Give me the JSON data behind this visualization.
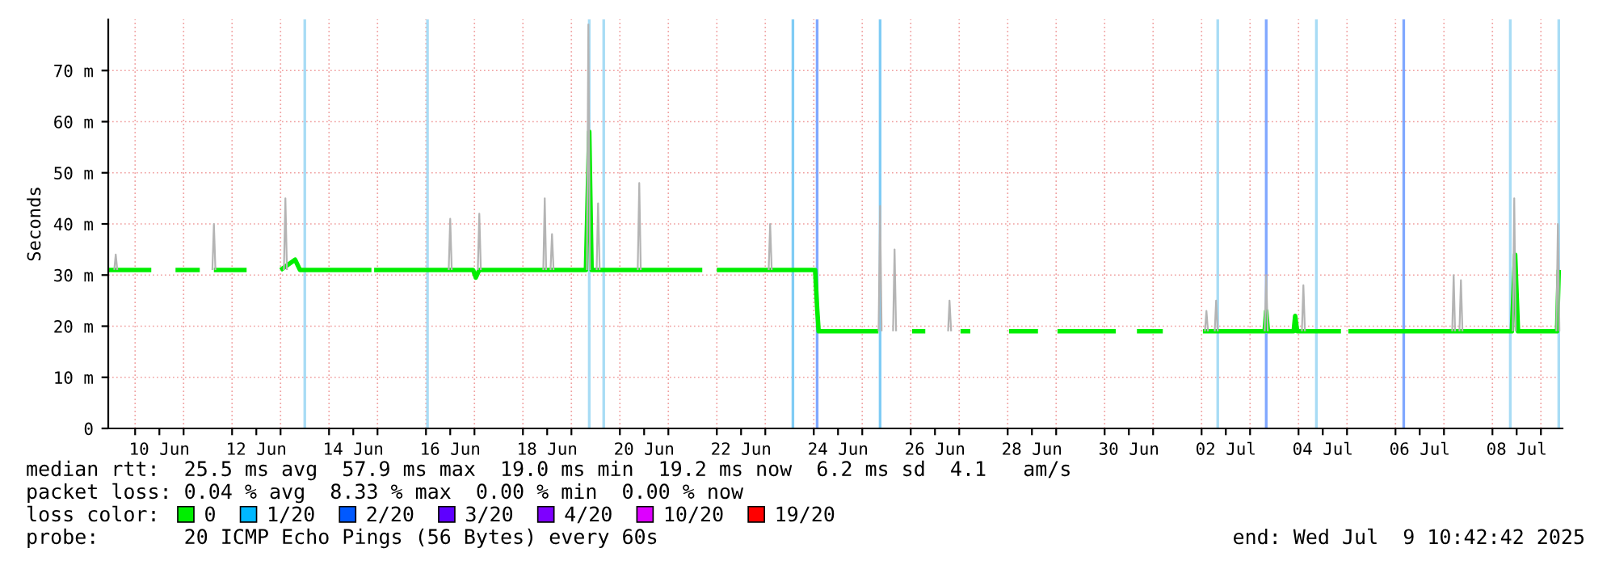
{
  "chart_data": {
    "type": "line",
    "ylabel": "Seconds",
    "xlim": [
      "2025-06-09T10:42",
      "2025-07-09T10:42"
    ],
    "xticks": [
      {
        "value": "2025-06-10T12:00",
        "label": "10 Jun"
      },
      {
        "value": "2025-06-12T12:00",
        "label": "12 Jun"
      },
      {
        "value": "2025-06-14T12:00",
        "label": "14 Jun"
      },
      {
        "value": "2025-06-16T12:00",
        "label": "16 Jun"
      },
      {
        "value": "2025-06-18T12:00",
        "label": "18 Jun"
      },
      {
        "value": "2025-06-20T12:00",
        "label": "20 Jun"
      },
      {
        "value": "2025-06-22T12:00",
        "label": "22 Jun"
      },
      {
        "value": "2025-06-24T12:00",
        "label": "24 Jun"
      },
      {
        "value": "2025-06-26T12:00",
        "label": "26 Jun"
      },
      {
        "value": "2025-06-28T12:00",
        "label": "28 Jun"
      },
      {
        "value": "2025-06-30T12:00",
        "label": "30 Jun"
      },
      {
        "value": "2025-07-02T12:00",
        "label": "02 Jul"
      },
      {
        "value": "2025-07-04T12:00",
        "label": "04 Jul"
      },
      {
        "value": "2025-07-06T12:00",
        "label": "06 Jul"
      },
      {
        "value": "2025-07-08T12:00",
        "label": "08 Jul"
      },
      {
        "value": "2025-06-10T00:00",
        "label": null
      },
      {
        "value": "2025-06-11T00:00",
        "label": null
      },
      {
        "value": "2025-06-12T00:00",
        "label": null
      },
      {
        "value": "2025-06-13T00:00",
        "label": null
      },
      {
        "value": "2025-06-14T00:00",
        "label": null
      },
      {
        "value": "2025-06-15T00:00",
        "label": null
      },
      {
        "value": "2025-06-16T00:00",
        "label": null
      },
      {
        "value": "2025-06-17T00:00",
        "label": null
      },
      {
        "value": "2025-06-18T00:00",
        "label": null
      },
      {
        "value": "2025-06-19T00:00",
        "label": null
      },
      {
        "value": "2025-06-20T00:00",
        "label": null
      },
      {
        "value": "2025-06-21T00:00",
        "label": null
      },
      {
        "value": "2025-06-22T00:00",
        "label": null
      },
      {
        "value": "2025-06-23T00:00",
        "label": null
      },
      {
        "value": "2025-06-24T00:00",
        "label": null
      },
      {
        "value": "2025-06-25T00:00",
        "label": null
      },
      {
        "value": "2025-06-26T00:00",
        "label": null
      },
      {
        "value": "2025-06-27T00:00",
        "label": null
      },
      {
        "value": "2025-06-28T00:00",
        "label": null
      },
      {
        "value": "2025-06-29T00:00",
        "label": null
      },
      {
        "value": "2025-06-30T00:00",
        "label": null
      },
      {
        "value": "2025-07-01T00:00",
        "label": null
      },
      {
        "value": "2025-07-02T00:00",
        "label": null
      },
      {
        "value": "2025-07-03T00:00",
        "label": null
      },
      {
        "value": "2025-07-04T00:00",
        "label": null
      },
      {
        "value": "2025-07-05T00:00",
        "label": null
      },
      {
        "value": "2025-07-06T00:00",
        "label": null
      },
      {
        "value": "2025-07-07T00:00",
        "label": null
      },
      {
        "value": "2025-07-08T00:00",
        "label": null
      },
      {
        "value": "2025-07-09T00:00",
        "label": null
      }
    ],
    "ylim": [
      0,
      80
    ],
    "yticks": [
      0,
      {
        "value": 10,
        "label": "10 m"
      },
      {
        "value": 20,
        "label": "20 m"
      },
      {
        "value": 30,
        "label": "30 m"
      },
      {
        "value": 40,
        "label": "40 m"
      },
      {
        "value": 50,
        "label": "50 m"
      },
      {
        "value": 60,
        "label": "60 m"
      },
      {
        "value": 70,
        "label": "70 m"
      }
    ],
    "grid": true,
    "legend": "bottom",
    "legend_title": "loss color:",
    "line_style": "solid",
    "series": [
      {
        "color": "#b4b4b4",
        "x": [
          "2025-06-09T13:40",
          "2025-06-09T14:24",
          "2025-06-09T15:10",
          null,
          "2025-06-11T14:15",
          "2025-06-11T15:00",
          "2025-06-11T15:45",
          null,
          "2025-06-13T01:40",
          "2025-06-13T02:24",
          "2025-06-13T03:10",
          null,
          "2025-06-16T11:15",
          "2025-06-16T12:00",
          "2025-06-16T12:45",
          null,
          "2025-06-17T01:40",
          "2025-06-17T02:24",
          "2025-06-17T03:10",
          null,
          "2025-06-18T10:05",
          "2025-06-18T10:48",
          "2025-06-18T11:30",
          null,
          "2025-06-18T13:40",
          "2025-06-18T14:24",
          "2025-06-18T15:10",
          null,
          "2025-06-19T07:40",
          "2025-06-19T08:24",
          "2025-06-19T09:10",
          null,
          "2025-06-19T12:30",
          "2025-06-19T13:12",
          "2025-06-19T14:00",
          null,
          "2025-06-20T08:50",
          "2025-06-20T09:36",
          "2025-06-20T10:20",
          null,
          "2025-06-23T01:40",
          "2025-06-23T02:24",
          "2025-06-23T03:10",
          null,
          "2025-06-25T08:05",
          "2025-06-25T08:50",
          "2025-06-25T09:35",
          null,
          "2025-06-25T15:15",
          "2025-06-25T16:00",
          "2025-06-25T16:45",
          null,
          "2025-06-26T18:30",
          "2025-06-26T19:12",
          "2025-06-26T20:00",
          null,
          "2025-07-02T01:40",
          "2025-07-02T02:24",
          "2025-07-02T03:10",
          null,
          "2025-07-02T06:30",
          "2025-07-02T07:12",
          "2025-07-02T08:00",
          null,
          "2025-07-03T07:15",
          "2025-07-03T08:00",
          "2025-07-03T08:45",
          null,
          "2025-07-04T01:40",
          "2025-07-04T02:24",
          "2025-07-04T03:10",
          null,
          "2025-07-07T04:05",
          "2025-07-07T04:48",
          "2025-07-07T05:30",
          null,
          "2025-07-07T07:40",
          "2025-07-07T08:24",
          "2025-07-07T09:10",
          null,
          "2025-07-08T10:05",
          "2025-07-08T10:48",
          "2025-07-08T11:30",
          null,
          "2025-07-09T07:40",
          "2025-07-09T08:24",
          "2025-07-09T09:10"
        ],
        "values": [
          31,
          34,
          31,
          null,
          31,
          40,
          31,
          null,
          31,
          45,
          31,
          null,
          31,
          41,
          31,
          null,
          31,
          42,
          31,
          null,
          31,
          45,
          31,
          null,
          31,
          38,
          31,
          null,
          31,
          79,
          31,
          null,
          31,
          44,
          31,
          null,
          31,
          48,
          31,
          null,
          31,
          40,
          31,
          null,
          19,
          43.5,
          19,
          null,
          19,
          35,
          19,
          null,
          19,
          25,
          19,
          null,
          19,
          23,
          19,
          null,
          19,
          25,
          19,
          null,
          19,
          30,
          19,
          null,
          19,
          28,
          19,
          null,
          19,
          30,
          19,
          null,
          19,
          29,
          19,
          null,
          19,
          45,
          19,
          null,
          19,
          40,
          19
        ]
      },
      {
        "name": "0",
        "color": "#00ee00",
        "x": [
          "2025-06-09T10:48",
          "2025-06-10T08:00",
          "2025-06-10T12:00",
          "2025-06-10T20:00",
          "2025-06-11T08:00",
          "2025-06-11T12:00",
          "2025-06-11T15:00",
          "2025-06-12T07:12",
          "2025-06-12T12:00",
          "2025-06-13T00:00",
          "2025-06-13T07:12",
          "2025-06-13T09:36",
          "2025-06-14T21:00",
          "2025-06-14T21:36",
          "2025-06-14T22:20",
          "2025-06-16T23:20",
          "2025-06-17T00:40",
          "2025-06-17T02:24",
          "2025-06-19T07:12",
          "2025-06-19T08:50",
          "2025-06-19T10:00",
          "2025-06-21T16:48",
          "2025-06-21T21:36",
          "2025-06-22T00:00",
          "2025-06-24T00:40",
          "2025-06-24T01:40",
          "2025-06-24T02:24",
          "2025-06-25T08:00",
          "2025-06-25T10:48",
          "2025-06-26T00:40",
          "2025-06-26T07:12",
          "2025-06-26T12:00",
          "2025-06-27T00:40",
          "2025-06-27T05:30",
          "2025-06-27T12:00",
          "2025-06-28T00:40",
          "2025-06-28T15:00",
          "2025-06-28T19:12",
          "2025-06-29T00:40",
          "2025-06-30T05:30",
          "2025-06-30T09:36",
          "2025-06-30T16:00",
          "2025-07-01T04:48",
          "2025-07-01T12:00",
          "2025-07-02T00:40",
          "2025-07-03T07:12",
          "2025-07-03T08:00",
          "2025-07-03T08:50",
          "2025-07-03T21:36",
          "2025-07-03T22:20",
          "2025-07-03T23:20",
          "2025-07-04T21:00",
          "2025-07-04T22:48",
          "2025-07-05T00:40",
          "2025-07-08T09:36",
          "2025-07-08T11:15",
          "2025-07-08T12:40",
          "2025-07-09T08:00",
          "2025-07-09T08:50"
        ],
        "values": [
          31,
          31,
          null,
          31,
          31,
          null,
          31,
          31,
          null,
          31,
          33,
          31,
          31,
          null,
          31,
          31,
          29.5,
          31,
          31,
          58,
          31,
          31,
          null,
          31,
          31,
          23.5,
          19,
          19,
          null,
          19,
          19,
          null,
          19,
          19,
          null,
          19,
          19,
          null,
          19,
          19,
          null,
          19,
          19,
          null,
          19,
          19,
          23,
          19,
          19,
          22,
          19,
          19,
          null,
          19,
          19,
          34,
          19,
          19,
          31
        ]
      },
      {
        "name": "1/20",
        "color": "#00b8ff"
      },
      {
        "name": "2/20",
        "color": "#0059ff"
      },
      {
        "name": "3/20",
        "color": "#5e00ff"
      },
      {
        "name": "4/20",
        "color": "#7e00ff"
      },
      {
        "name": "10/20",
        "color": "#dd00ff"
      },
      {
        "name": "19/20",
        "color": "#ff0000"
      }
    ],
    "ref_lines": [
      {
        "axis": "x",
        "value": "2025-06-13T12:00",
        "color": "#a8dcf5"
      },
      {
        "axis": "x",
        "value": "2025-06-16T00:45",
        "color": "#a8dcf5"
      },
      {
        "axis": "x",
        "value": "2025-06-19T08:50",
        "color": "#a8dcf5"
      },
      {
        "axis": "x",
        "value": "2025-06-19T16:00",
        "color": "#a8dcf5"
      },
      {
        "axis": "x",
        "value": "2025-06-23T13:40",
        "color": "#80ccf5"
      },
      {
        "axis": "x",
        "value": "2025-06-24T01:40",
        "color": "#80a8ff"
      },
      {
        "axis": "x",
        "value": "2025-06-25T08:50",
        "color": "#80ccf5"
      },
      {
        "axis": "x",
        "value": "2025-07-02T08:00",
        "color": "#a8dcf5"
      },
      {
        "axis": "x",
        "value": "2025-07-03T08:00",
        "color": "#80a8ff"
      },
      {
        "axis": "x",
        "value": "2025-07-04T08:50",
        "color": "#a8dcf5"
      },
      {
        "axis": "x",
        "value": "2025-07-06T04:05",
        "color": "#80a8ff"
      },
      {
        "axis": "x",
        "value": "2025-07-08T08:50",
        "color": "#a8dcf5"
      },
      {
        "axis": "x",
        "value": "2025-07-09T08:50",
        "color": "#a8dcf5"
      }
    ],
    "annotations": [
      "median rtt:  25.5 ms avg  57.9 ms max  19.0 ms min  19.2 ms now  6.2 ms sd  4.1   am/s",
      "packet loss: 0.04 % avg  8.33 % max  0.00 % min  0.00 % now",
      "probe:       20 ICMP Echo Pings (56 Bytes) every 60s",
      "end: Wed Jul  9 10:42:42 2025"
    ]
  }
}
